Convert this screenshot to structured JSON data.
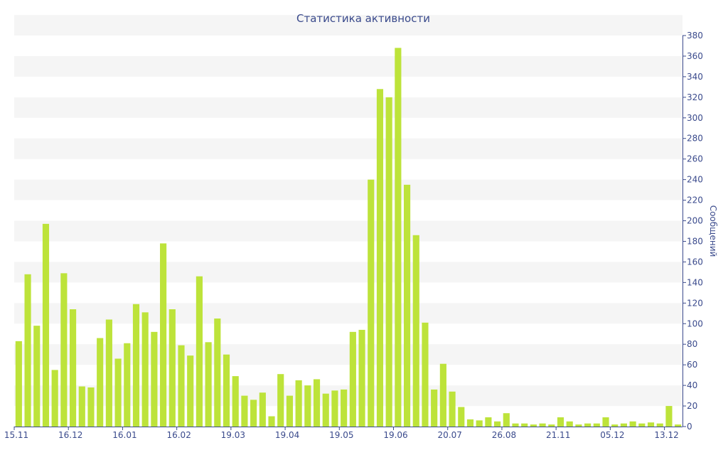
{
  "chart_data": {
    "type": "bar",
    "title": "Статистика активности",
    "xlabel": "",
    "ylabel": "Сообщений",
    "ylim": [
      0,
      380
    ],
    "y_ticks": [
      0,
      20,
      40,
      60,
      80,
      100,
      120,
      140,
      160,
      180,
      200,
      220,
      240,
      260,
      280,
      300,
      320,
      340,
      360,
      380
    ],
    "y_axis_side": "right",
    "grid": "alternating horizontal bands",
    "colors": {
      "bar": "#bde33a",
      "text": "#3a4a8c",
      "band": "#f5f5f5",
      "axis": "#3a4a8c"
    },
    "x_tick_labels": [
      {
        "label": "15.11",
        "index": 0
      },
      {
        "label": "16.12",
        "index": 6
      },
      {
        "label": "16.01",
        "index": 12
      },
      {
        "label": "16.02",
        "index": 18
      },
      {
        "label": "19.03",
        "index": 24
      },
      {
        "label": "19.04",
        "index": 30
      },
      {
        "label": "19.05",
        "index": 36
      },
      {
        "label": "19.06",
        "index": 42
      },
      {
        "label": "20.07",
        "index": 48
      },
      {
        "label": "26.08",
        "index": 54
      },
      {
        "label": "21.11",
        "index": 60
      },
      {
        "label": "05.12",
        "index": 66
      },
      {
        "label": "13.12",
        "index": 72
      }
    ],
    "values": [
      83,
      148,
      98,
      197,
      55,
      149,
      114,
      39,
      38,
      86,
      104,
      66,
      81,
      119,
      111,
      92,
      178,
      114,
      79,
      69,
      146,
      82,
      105,
      70,
      49,
      30,
      26,
      33,
      10,
      51,
      30,
      45,
      40,
      46,
      32,
      35,
      36,
      92,
      94,
      240,
      328,
      320,
      368,
      235,
      186,
      101,
      36,
      61,
      34,
      19,
      7,
      6,
      9,
      5,
      13,
      3,
      3,
      2,
      3,
      2,
      9,
      5,
      2,
      3,
      3,
      9,
      2,
      3,
      5,
      3,
      4,
      3,
      20,
      2
    ]
  }
}
